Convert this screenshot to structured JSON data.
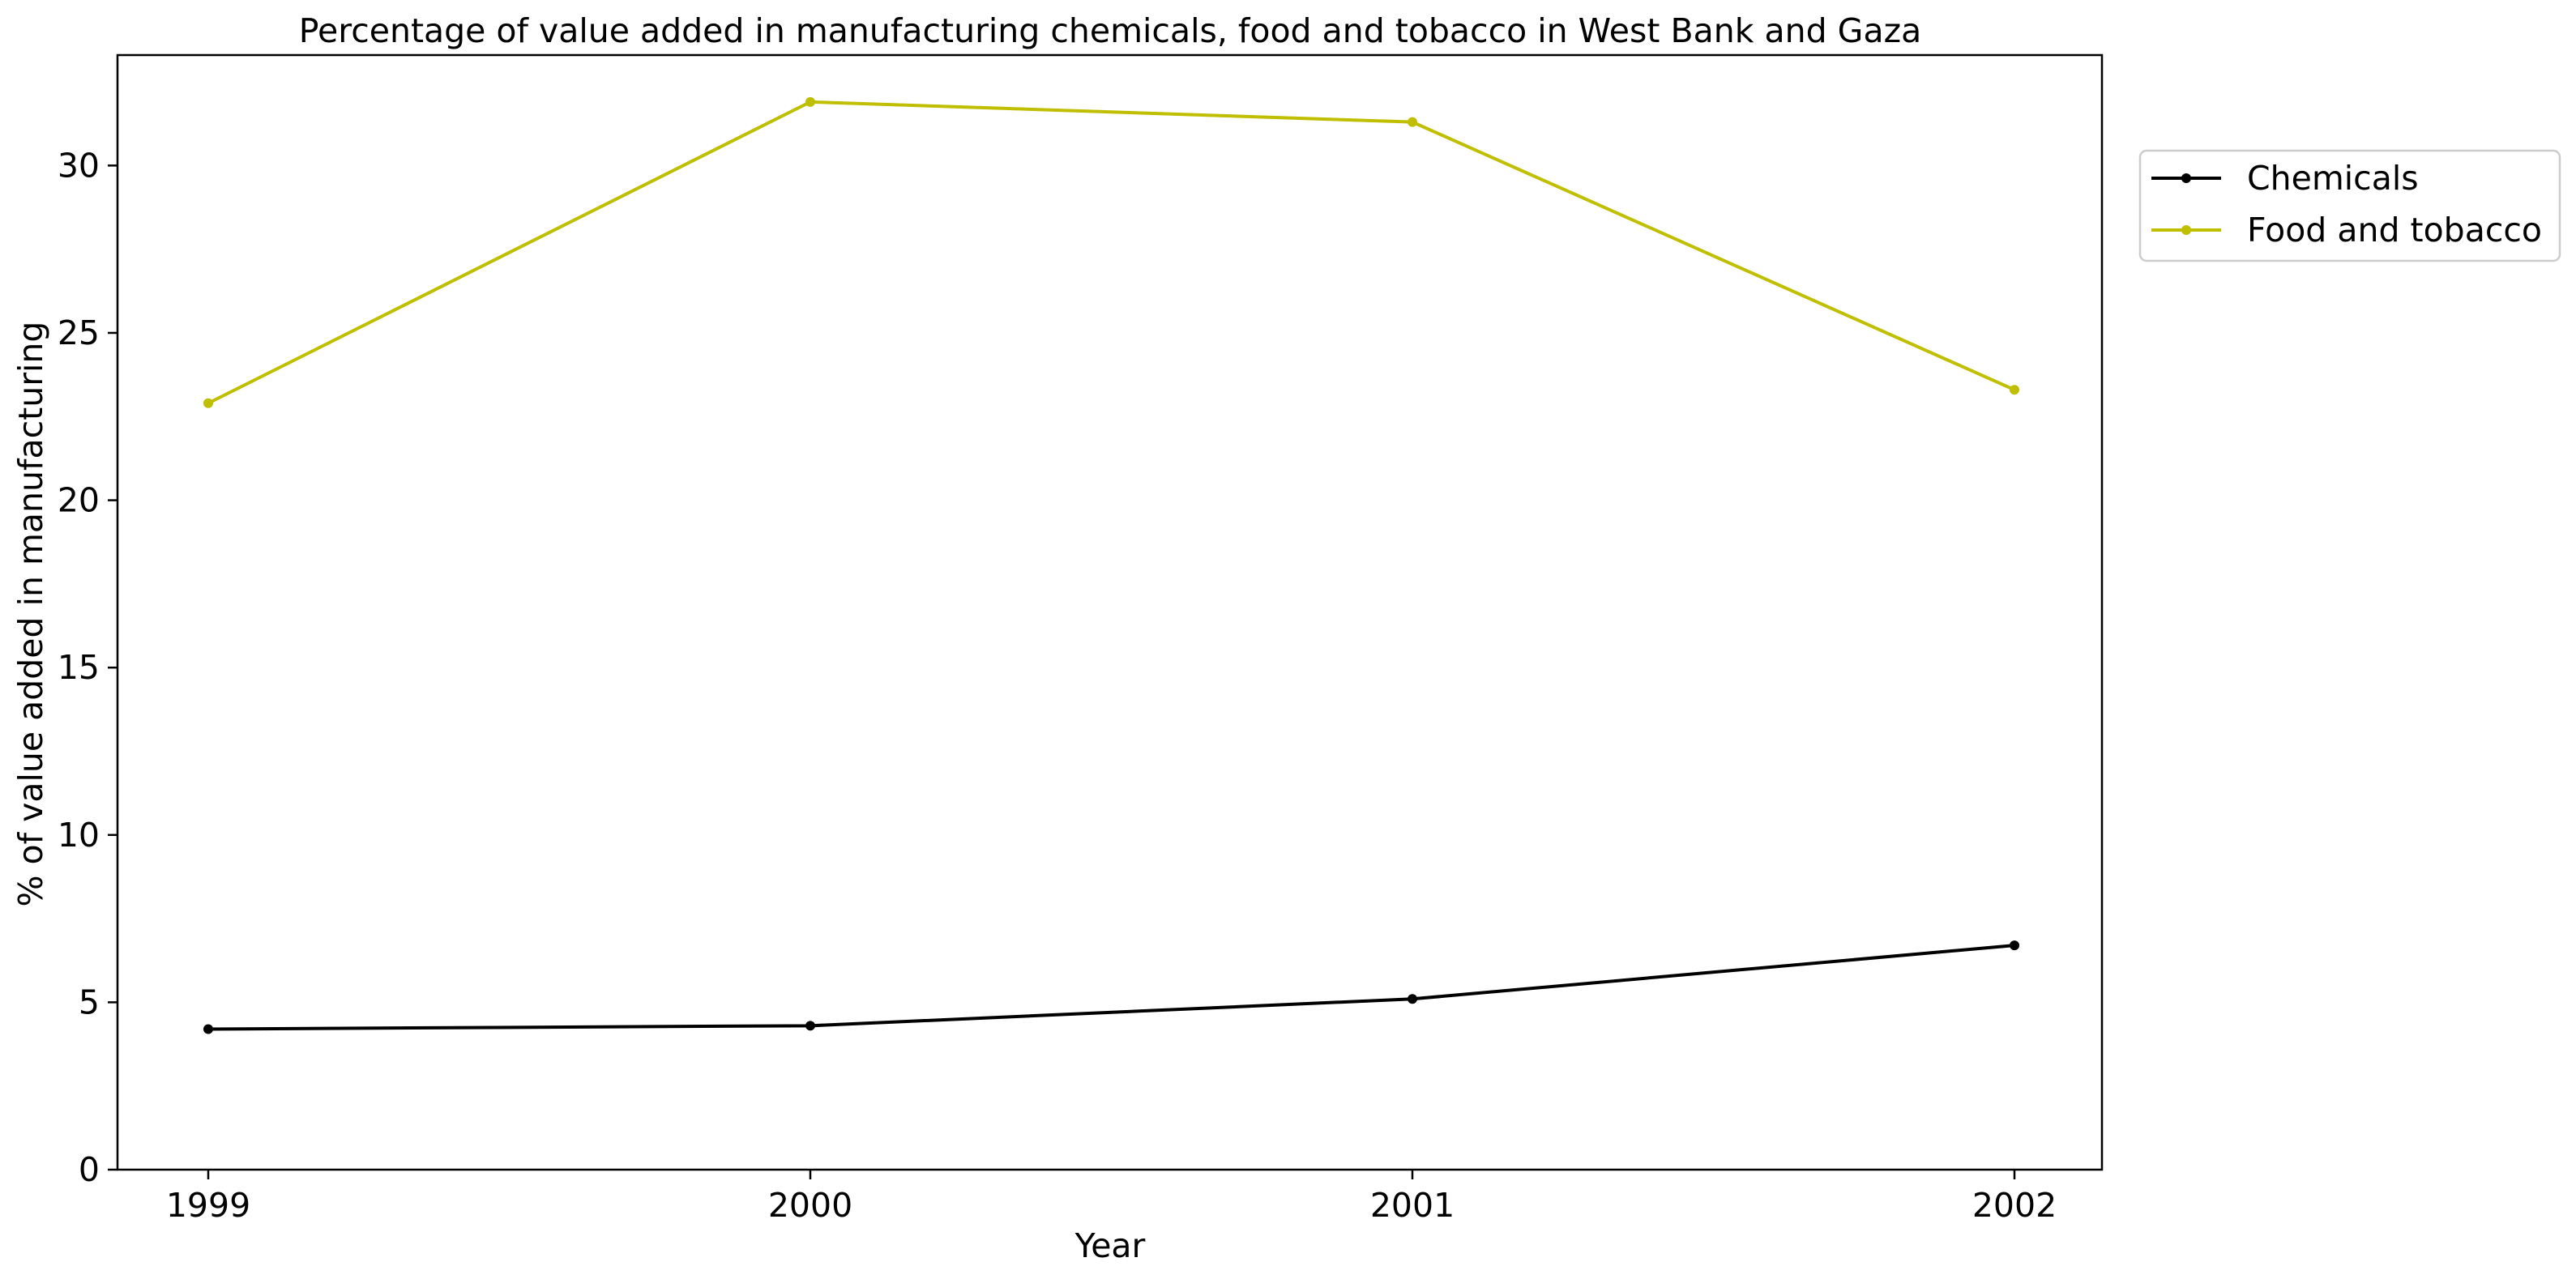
{
  "chart_data": {
    "type": "line",
    "title": "Percentage of value added in manufacturing chemicals, food and tobacco in West Bank and Gaza",
    "xlabel": "Year",
    "ylabel": "% of value added in manufacturing",
    "x": [
      "1999",
      "2000",
      "2001",
      "2002"
    ],
    "ylim": [
      0,
      33.3
    ],
    "yticks": [
      0,
      5,
      10,
      15,
      20,
      25,
      30
    ],
    "grid": false,
    "legend_position": "right, outside plot top",
    "series": [
      {
        "name": "Chemicals",
        "color": "#000000",
        "values": [
          4.2,
          4.3,
          5.1,
          6.7
        ]
      },
      {
        "name": "Food and tobacco",
        "color": "#bfbf00",
        "values": [
          22.9,
          31.9,
          31.3,
          23.3
        ]
      }
    ]
  }
}
